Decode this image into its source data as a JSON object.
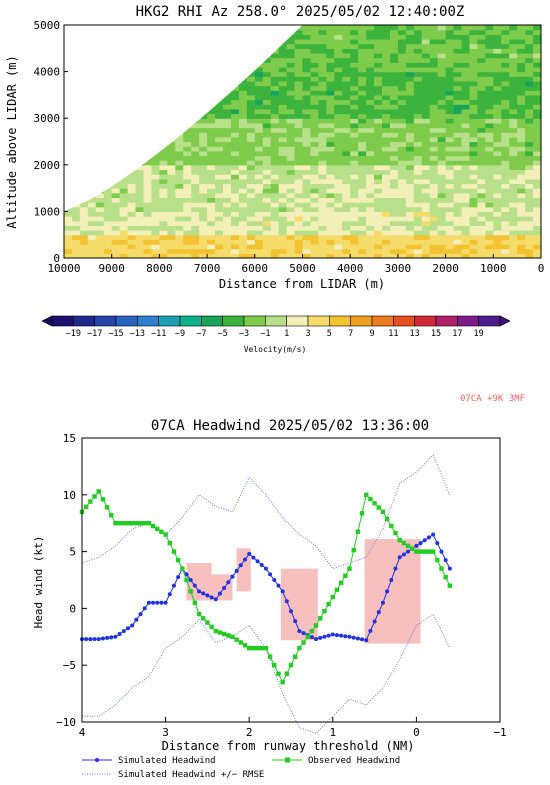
{
  "rhi": {
    "title": "HKG2 RHI Az 258.0° 2025/05/02 12:40:00Z",
    "ylabel": "Altitude above LIDAR (m)",
    "xlabel": "Distance from LIDAR (m)",
    "x_ticks": [
      "10000",
      "9000",
      "8000",
      "7000",
      "6000",
      "5000",
      "4000",
      "3000",
      "2000",
      "1000",
      "0"
    ],
    "y_ticks": [
      "0",
      "1000",
      "2000",
      "3000",
      "4000",
      "5000"
    ],
    "colorbar_label": "Velocity(m/s)",
    "colorbar_ticks": [
      "−19",
      "−17",
      "−15",
      "−13",
      "−11",
      "−9",
      "−7",
      "−5",
      "−3",
      "−1",
      "1",
      "3",
      "5",
      "7",
      "9",
      "11",
      "13",
      "15",
      "17",
      "19"
    ],
    "colorbar_colors": [
      "#1c0f6e",
      "#1f2a8c",
      "#2445a8",
      "#2a62bf",
      "#2f7fd1",
      "#1a9fb4",
      "#0fb08a",
      "#1aa35a",
      "#3cb33c",
      "#7fcc4c",
      "#b8e08a",
      "#f2efb8",
      "#f5dc6a",
      "#f2c230",
      "#f0a020",
      "#ec7c1c",
      "#e6501c",
      "#d02a3a",
      "#b0206a",
      "#7c1c8c",
      "#4c1c8c"
    ]
  },
  "chart_data": [
    {
      "type": "heatmap",
      "title": "HKG2 RHI Az 258.0° 2025/05/02 12:40:00Z",
      "xlabel": "Distance from LIDAR (m)",
      "ylabel": "Altitude above LIDAR (m)",
      "xlim": [
        10000,
        0
      ],
      "ylim": [
        0,
        5000
      ],
      "colorbar": {
        "label": "Velocity(m/s)",
        "range": [
          -20,
          20
        ]
      },
      "layers": [
        {
          "alt_range": [
            0,
            500
          ],
          "velocity": 3
        },
        {
          "alt_range": [
            500,
            1000
          ],
          "velocity": 0
        },
        {
          "alt_range": [
            1000,
            2000
          ],
          "velocity": -1
        },
        {
          "alt_range": [
            2000,
            3000
          ],
          "velocity": -3
        },
        {
          "alt_range": [
            3000,
            4000
          ],
          "velocity": -5
        },
        {
          "alt_range": [
            4000,
            5000
          ],
          "velocity": -4
        }
      ]
    },
    {
      "type": "line",
      "title": "07CA Headwind 2025/05/02 13:36:00",
      "xlabel": "Distance from runway threshold (NM)",
      "ylabel": "Head wind (kt)",
      "xlim": [
        4,
        -1
      ],
      "ylim": [
        -10,
        15
      ],
      "x_ticks": [
        "4",
        "3",
        "2",
        "1",
        "0",
        "−1"
      ],
      "y_ticks": [
        "15",
        "10",
        "5",
        "0",
        "−5",
        "−10"
      ],
      "x": [
        4.0,
        3.8,
        3.6,
        3.4,
        3.2,
        3.0,
        2.8,
        2.6,
        2.4,
        2.2,
        2.0,
        1.8,
        1.6,
        1.4,
        1.2,
        1.0,
        0.8,
        0.6,
        0.4,
        0.2,
        0.0,
        -0.2,
        -0.4
      ],
      "series": [
        {
          "name": "Simulated Headwind",
          "color": "#1f33e0",
          "values": [
            -2.7,
            -2.7,
            -2.5,
            -1.5,
            0.5,
            0.5,
            3.5,
            1.5,
            0.8,
            2.8,
            4.8,
            3.5,
            1.5,
            -2.0,
            -2.7,
            -2.3,
            -2.5,
            -2.8,
            0.5,
            4.5,
            5.5,
            6.5,
            3.5
          ]
        },
        {
          "name": "Simulated Headwind +/- RMSE (upper)",
          "color": "#6b78e0",
          "values": [
            4.0,
            4.5,
            5.5,
            7.0,
            7.5,
            6.5,
            8.0,
            10.0,
            9.0,
            8.5,
            11.5,
            10.0,
            8.0,
            6.5,
            5.5,
            3.5,
            4.0,
            4.5,
            7.0,
            11.0,
            12.0,
            13.5,
            10.0
          ]
        },
        {
          "name": "Simulated Headwind +/- RMSE (lower)",
          "color": "#6b78e0",
          "values": [
            -9.5,
            -9.5,
            -8.5,
            -7.0,
            -6.0,
            -3.5,
            -2.5,
            -1.0,
            -3.0,
            -2.5,
            -1.5,
            -3.5,
            -7.5,
            -10.5,
            -11.0,
            -9.5,
            -8.0,
            -8.5,
            -7.0,
            -4.5,
            -1.5,
            -0.5,
            -3.5
          ]
        },
        {
          "name": "Observed Headwind",
          "color": "#22cc22",
          "values": [
            8.5,
            10.3,
            7.5,
            7.5,
            7.5,
            6.5,
            3.5,
            -0.5,
            -2.0,
            -2.5,
            -3.5,
            -3.5,
            -6.5,
            -3.5,
            -1.5,
            1.0,
            3.5,
            10.0,
            8.5,
            6.0,
            5.0,
            5.0,
            2.0
          ]
        }
      ],
      "highlight_boxes": [
        {
          "x_range": [
            2.75,
            2.45
          ],
          "y_range": [
            0.7,
            4.0
          ]
        },
        {
          "x_range": [
            2.45,
            2.2
          ],
          "y_range": [
            0.7,
            3.0
          ]
        },
        {
          "x_range": [
            2.15,
            1.98
          ],
          "y_range": [
            1.5,
            5.3
          ]
        },
        {
          "x_range": [
            1.62,
            1.18
          ],
          "y_range": [
            -2.8,
            3.5
          ]
        },
        {
          "x_range": [
            0.62,
            -0.05
          ],
          "y_range": [
            -3.1,
            6.1
          ]
        }
      ]
    }
  ],
  "headwind": {
    "title": "07CA Headwind 2025/05/02 13:36:00",
    "annotation": "07CA +9K 3MF",
    "xlabel": "Distance from runway threshold (NM)",
    "ylabel": "Head wind (kt)",
    "legend": {
      "simulated": "Simulated Headwind",
      "observed": "Observed Headwind",
      "rmse": "Simulated Headwind +/− RMSE"
    },
    "colors": {
      "simulated": "#1f33e0",
      "observed": "#22cc22",
      "rmse": "#6b78e0",
      "box": "#f7b4b4",
      "annotation": "#f06060"
    }
  }
}
